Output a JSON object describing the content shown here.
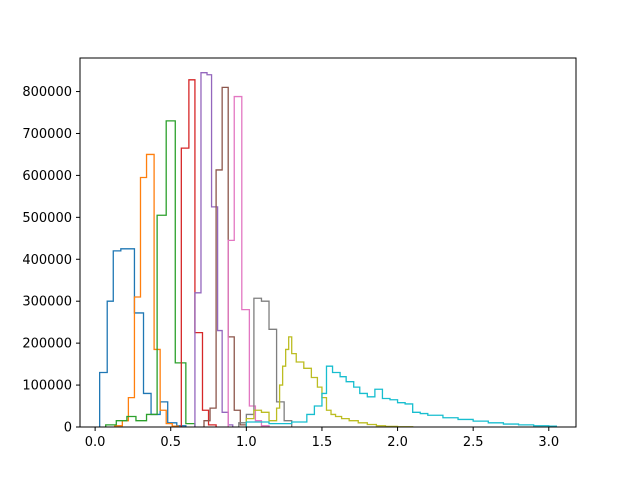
{
  "chart_data": {
    "type": "histogram",
    "title": "",
    "xlabel": "",
    "ylabel": "",
    "xlim": [
      -0.1,
      3.18
    ],
    "ylim": [
      0,
      880000
    ],
    "xticks": [
      0.0,
      0.5,
      1.0,
      1.5,
      2.0,
      2.5,
      3.0
    ],
    "xtick_labels": [
      "0.0",
      "0.5",
      "1.0",
      "1.5",
      "2.0",
      "2.5",
      "3.0"
    ],
    "yticks": [
      0,
      100000,
      200000,
      300000,
      400000,
      500000,
      600000,
      700000,
      800000
    ],
    "ytick_labels": [
      "0",
      "100000",
      "200000",
      "300000",
      "400000",
      "500000",
      "600000",
      "700000",
      "800000"
    ],
    "grid": false,
    "legend": "none",
    "series": [
      {
        "color": "#1f77b4",
        "edges": [
          0.03,
          0.08,
          0.12,
          0.17,
          0.26,
          0.32,
          0.37,
          0.43,
          0.48,
          0.54,
          0.6
        ],
        "counts": [
          130000,
          300000,
          420000,
          425000,
          272000,
          80000,
          30000,
          60000,
          10000,
          3000
        ]
      },
      {
        "color": "#ff7f0e",
        "edges": [
          0.13,
          0.18,
          0.22,
          0.26,
          0.3,
          0.34,
          0.39,
          0.43,
          0.47,
          0.51,
          0.55
        ],
        "counts": [
          3000,
          15000,
          70000,
          310000,
          595000,
          650000,
          185000,
          40000,
          8000,
          2000
        ]
      },
      {
        "color": "#2ca02c",
        "edges": [
          0.07,
          0.14,
          0.21,
          0.27,
          0.34,
          0.41,
          0.47,
          0.53,
          0.6,
          0.66
        ],
        "counts": [
          5000,
          15000,
          25000,
          15000,
          30000,
          505000,
          730000,
          153000,
          8000
        ]
      },
      {
        "color": "#d62728",
        "edges": [
          0.57,
          0.62,
          0.66,
          0.71,
          0.75,
          0.8
        ],
        "counts": [
          665000,
          828000,
          225000,
          40000,
          5000
        ]
      },
      {
        "color": "#9467bd",
        "edges": [
          0.66,
          0.7,
          0.74,
          0.77,
          0.81,
          0.84,
          0.88,
          0.91
        ],
        "counts": [
          320000,
          845000,
          840000,
          525000,
          230000,
          35000,
          5000
        ]
      },
      {
        "color": "#8c564b",
        "edges": [
          0.72,
          0.76,
          0.8,
          0.84,
          0.88,
          0.92,
          0.96,
          1.0
        ],
        "counts": [
          15000,
          45000,
          613000,
          810000,
          215000,
          40000,
          5000
        ]
      },
      {
        "color": "#e377c2",
        "edges": [
          0.88,
          0.92,
          0.97,
          1.02,
          1.06,
          1.1,
          1.15
        ],
        "counts": [
          445000,
          788000,
          280000,
          50000,
          15000,
          3000
        ]
      },
      {
        "color": "#7f7f7f",
        "edges": [
          0.95,
          1.0,
          1.05,
          1.1,
          1.15,
          1.2,
          1.25,
          1.3
        ],
        "counts": [
          10000,
          30000,
          307000,
          300000,
          233000,
          60000,
          15000
        ]
      },
      {
        "color": "#bcbd22",
        "edges": [
          1.0,
          1.05,
          1.1,
          1.15,
          1.2,
          1.22,
          1.24,
          1.26,
          1.28,
          1.3,
          1.33,
          1.38,
          1.43,
          1.47,
          1.5,
          1.53,
          1.56,
          1.59,
          1.63,
          1.68,
          1.74,
          1.8,
          1.86,
          1.92,
          2.0,
          2.1
        ],
        "counts": [
          20000,
          40000,
          35000,
          15000,
          45000,
          100000,
          145000,
          185000,
          215000,
          175000,
          155000,
          140000,
          118000,
          95000,
          70000,
          40000,
          30000,
          25000,
          20000,
          15000,
          10000,
          6000,
          3000,
          1500,
          500
        ]
      },
      {
        "color": "#17becf",
        "edges": [
          1.0,
          1.15,
          1.3,
          1.4,
          1.45,
          1.5,
          1.53,
          1.57,
          1.62,
          1.66,
          1.71,
          1.75,
          1.8,
          1.85,
          1.9,
          1.95,
          2.0,
          2.05,
          2.1,
          2.15,
          2.2,
          2.3,
          2.4,
          2.5,
          2.6,
          2.7,
          2.8,
          2.9,
          3.0,
          3.05
        ],
        "counts": [
          12000,
          8000,
          12000,
          30000,
          50000,
          80000,
          145000,
          130000,
          120000,
          108000,
          95000,
          80000,
          72000,
          90000,
          68000,
          65000,
          58000,
          55000,
          35000,
          32000,
          28000,
          22000,
          18000,
          14000,
          10000,
          7000,
          5000,
          3000,
          2000
        ]
      }
    ]
  }
}
